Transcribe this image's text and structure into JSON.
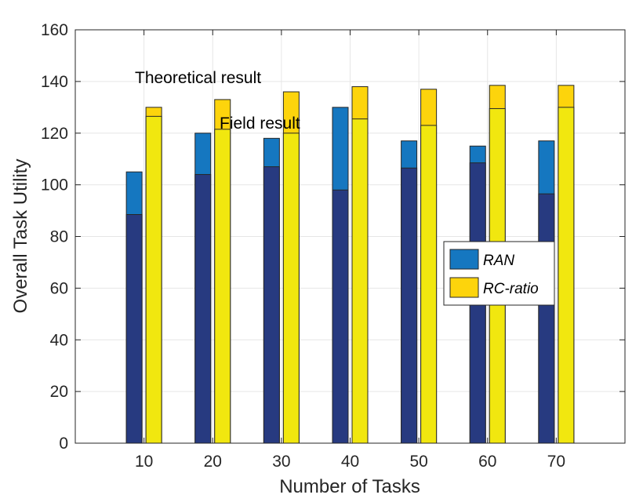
{
  "chart_data": {
    "type": "bar",
    "xlabel": "Number of Tasks",
    "ylabel": "Overall Task Utility",
    "categories": [
      "10",
      "20",
      "30",
      "40",
      "50",
      "60",
      "70"
    ],
    "ylim": [
      0,
      160
    ],
    "yticks": [
      0,
      20,
      40,
      60,
      80,
      100,
      120,
      140,
      160
    ],
    "grid": true,
    "legend_position": "right",
    "series": [
      {
        "name": "RAN",
        "theoretical": [
          105,
          120,
          118,
          130,
          117,
          115,
          117
        ],
        "field": [
          88.5,
          104,
          107,
          98,
          106.5,
          108.5,
          96.5
        ],
        "color_theoretical": "#1577c0",
        "color_field": "#273a80"
      },
      {
        "name": "RC-ratio",
        "theoretical": [
          130,
          133,
          136,
          138,
          137,
          138.5,
          138.5
        ],
        "field": [
          126.5,
          121.5,
          120,
          125.5,
          123,
          129.5,
          130
        ],
        "color_theoretical": "#fdd40c",
        "color_field": "#f1e70f"
      }
    ],
    "annotations": [
      "Theoretical result",
      "Field result"
    ]
  }
}
